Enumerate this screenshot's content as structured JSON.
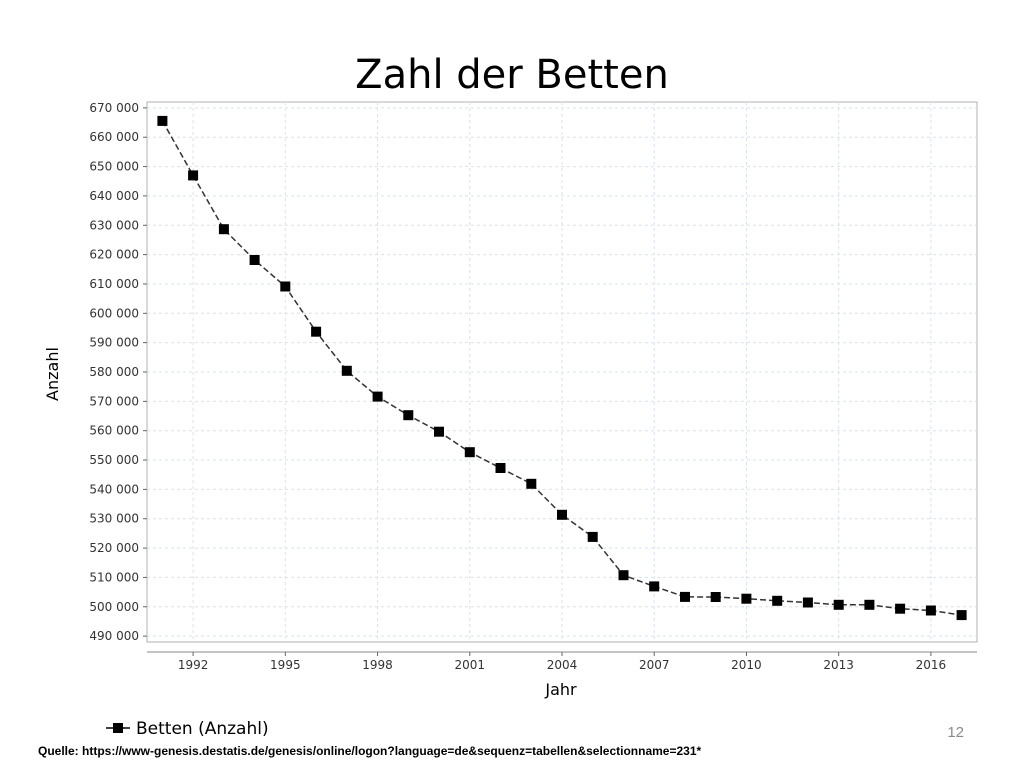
{
  "slide": {
    "title": "Zahl der Betten",
    "page_number": "12",
    "source": "Quelle: https://www-genesis.destatis.de/genesis/online/logon?language=de&sequenz=tabellen&selectionname=231*"
  },
  "colors": {
    "line": "#333333",
    "marker": "#000000",
    "grid": "#d7e3ef",
    "frame": "#b0b0b0"
  },
  "chart_data": {
    "type": "line",
    "xlabel": "Jahr",
    "ylabel": "Anzahl",
    "xlim": [
      1990.5,
      2017.5
    ],
    "ylim": [
      488000,
      672000
    ],
    "x_ticks": [
      1992,
      1995,
      1998,
      2001,
      2004,
      2007,
      2010,
      2013,
      2016
    ],
    "x_tick_labels": [
      "1992",
      "1995",
      "1998",
      "2001",
      "2004",
      "2007",
      "2010",
      "2013",
      "2016"
    ],
    "y_ticks": [
      490000,
      500000,
      510000,
      520000,
      530000,
      540000,
      550000,
      560000,
      570000,
      580000,
      590000,
      600000,
      610000,
      620000,
      630000,
      640000,
      650000,
      660000,
      670000
    ],
    "y_tick_labels": [
      "490 000",
      "500 000",
      "510 000",
      "520 000",
      "530 000",
      "540 000",
      "550 000",
      "560 000",
      "570 000",
      "580 000",
      "590 000",
      "600 000",
      "610 000",
      "620 000",
      "630 000",
      "640 000",
      "650 000",
      "660 000",
      "670 000"
    ],
    "grid": true,
    "legend_position": "bottom-left",
    "series": [
      {
        "name": "Betten (Anzahl)",
        "line_style": "dashed",
        "marker": "square",
        "x": [
          1991,
          1992,
          1993,
          1994,
          1995,
          1996,
          1997,
          1998,
          1999,
          2000,
          2001,
          2002,
          2003,
          2004,
          2005,
          2006,
          2007,
          2008,
          2009,
          2010,
          2011,
          2012,
          2013,
          2014,
          2015,
          2016,
          2017
        ],
        "values": [
          665565,
          646995,
          628658,
          618176,
          609123,
          593743,
          580425,
          571629,
          565268,
          559651,
          552680,
          547284,
          541901,
          531333,
          523824,
          510767,
          506954,
          503360,
          503341,
          502749,
          502029,
          501475,
          500671,
          500680,
          499351,
          498718,
          497182
        ]
      }
    ]
  }
}
